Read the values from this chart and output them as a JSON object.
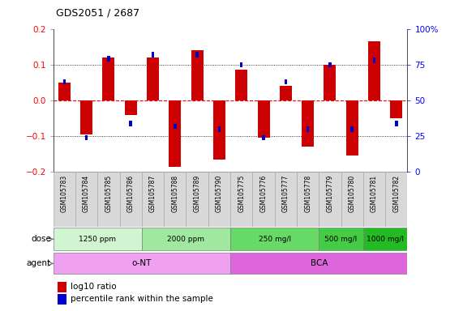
{
  "title": "GDS2051 / 2687",
  "samples": [
    "GSM105783",
    "GSM105784",
    "GSM105785",
    "GSM105786",
    "GSM105787",
    "GSM105788",
    "GSM105789",
    "GSM105790",
    "GSM105775",
    "GSM105776",
    "GSM105777",
    "GSM105778",
    "GSM105779",
    "GSM105780",
    "GSM105781",
    "GSM105782"
  ],
  "log10_ratio": [
    0.05,
    -0.095,
    0.12,
    -0.04,
    0.12,
    -0.185,
    0.14,
    -0.165,
    0.085,
    -0.105,
    0.04,
    -0.13,
    0.1,
    -0.155,
    0.165,
    -0.05
  ],
  "percentile_rank": [
    0.63,
    0.24,
    0.79,
    0.34,
    0.82,
    0.32,
    0.82,
    0.3,
    0.75,
    0.24,
    0.63,
    0.3,
    0.75,
    0.3,
    0.78,
    0.34
  ],
  "dose_groups": [
    {
      "label": "1250 ppm",
      "start": 0,
      "end": 4,
      "color": "#d0f5d0"
    },
    {
      "label": "2000 ppm",
      "start": 4,
      "end": 8,
      "color": "#a0e8a0"
    },
    {
      "label": "250 mg/l",
      "start": 8,
      "end": 12,
      "color": "#66d966"
    },
    {
      "label": "500 mg/l",
      "start": 12,
      "end": 14,
      "color": "#44cc44"
    },
    {
      "label": "1000 mg/l",
      "start": 14,
      "end": 16,
      "color": "#22bb22"
    }
  ],
  "agent_groups": [
    {
      "label": "o-NT",
      "start": 0,
      "end": 8,
      "color": "#f0a0f0"
    },
    {
      "label": "BCA",
      "start": 8,
      "end": 16,
      "color": "#dd66dd"
    }
  ],
  "ylim": [
    -0.2,
    0.2
  ],
  "yticks_left": [
    -0.2,
    -0.1,
    0.0,
    0.1,
    0.2
  ],
  "yticks_right_vals": [
    0,
    25,
    50,
    75,
    100
  ],
  "yticks_right_labels": [
    "0",
    "25",
    "50",
    "75",
    "100%"
  ],
  "bar_color": "#cc0000",
  "pct_color": "#0000cc",
  "bar_width": 0.55,
  "pct_bar_width": 0.13,
  "sample_bg_color": "#d8d8d8",
  "sample_border_color": "#aaaaaa"
}
